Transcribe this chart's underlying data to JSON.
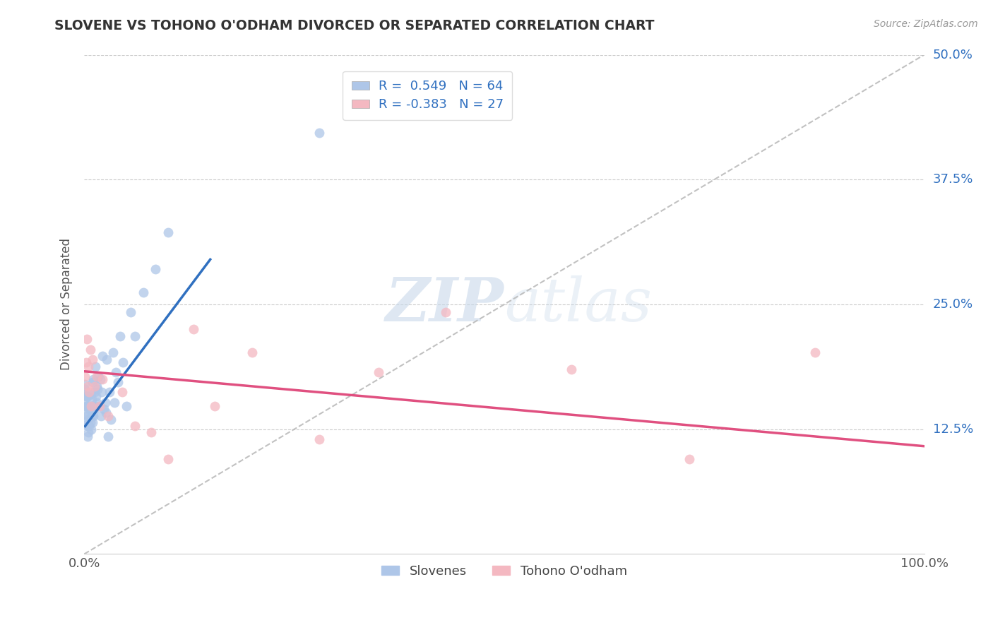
{
  "title": "SLOVENE VS TOHONO O'ODHAM DIVORCED OR SEPARATED CORRELATION CHART",
  "source_text": "Source: ZipAtlas.com",
  "ylabel": "Divorced or Separated",
  "xmin": 0.0,
  "xmax": 1.0,
  "ymin": 0.0,
  "ymax": 0.5,
  "ytick_positions": [
    0.125,
    0.25,
    0.375,
    0.5
  ],
  "ytick_labels": [
    "12.5%",
    "25.0%",
    "37.5%",
    "50.0%"
  ],
  "grid_color": "#cccccc",
  "background_color": "#ffffff",
  "slovene_color": "#aec6e8",
  "tohono_color": "#f4b8c1",
  "slovene_line_color": "#3070c0",
  "tohono_line_color": "#e05080",
  "diagonal_color": "#bbbbbb",
  "R_slovene": 0.549,
  "N_slovene": 64,
  "R_tohono": -0.383,
  "N_tohono": 27,
  "legend_label_slovene": "Slovenes",
  "legend_label_tohono": "Tohono O'odham",
  "watermark_zip": "ZIP",
  "watermark_atlas": "atlas",
  "slovene_scatter_x": [
    0.001,
    0.001,
    0.001,
    0.001,
    0.002,
    0.002,
    0.002,
    0.003,
    0.003,
    0.003,
    0.003,
    0.004,
    0.004,
    0.004,
    0.005,
    0.005,
    0.005,
    0.006,
    0.006,
    0.007,
    0.007,
    0.008,
    0.008,
    0.009,
    0.009,
    0.01,
    0.01,
    0.01,
    0.011,
    0.011,
    0.012,
    0.012,
    0.013,
    0.013,
    0.014,
    0.015,
    0.015,
    0.016,
    0.017,
    0.018,
    0.019,
    0.02,
    0.021,
    0.022,
    0.023,
    0.025,
    0.026,
    0.027,
    0.028,
    0.03,
    0.032,
    0.034,
    0.036,
    0.038,
    0.04,
    0.043,
    0.046,
    0.05,
    0.055,
    0.06,
    0.07,
    0.085,
    0.1,
    0.28
  ],
  "slovene_scatter_y": [
    0.155,
    0.16,
    0.165,
    0.17,
    0.14,
    0.148,
    0.158,
    0.13,
    0.138,
    0.148,
    0.158,
    0.118,
    0.128,
    0.158,
    0.122,
    0.135,
    0.148,
    0.128,
    0.145,
    0.132,
    0.148,
    0.125,
    0.16,
    0.138,
    0.155,
    0.132,
    0.148,
    0.172,
    0.138,
    0.175,
    0.145,
    0.162,
    0.148,
    0.188,
    0.158,
    0.152,
    0.168,
    0.165,
    0.178,
    0.148,
    0.175,
    0.138,
    0.162,
    0.198,
    0.145,
    0.152,
    0.142,
    0.195,
    0.118,
    0.162,
    0.135,
    0.202,
    0.152,
    0.182,
    0.172,
    0.218,
    0.192,
    0.148,
    0.242,
    0.218,
    0.262,
    0.285,
    0.322,
    0.422
  ],
  "tohono_scatter_x": [
    0.001,
    0.002,
    0.003,
    0.004,
    0.005,
    0.006,
    0.007,
    0.008,
    0.01,
    0.012,
    0.015,
    0.018,
    0.022,
    0.028,
    0.045,
    0.06,
    0.08,
    0.1,
    0.13,
    0.155,
    0.2,
    0.28,
    0.35,
    0.43,
    0.58,
    0.72,
    0.87
  ],
  "tohono_scatter_y": [
    0.178,
    0.192,
    0.215,
    0.168,
    0.188,
    0.162,
    0.205,
    0.148,
    0.195,
    0.168,
    0.178,
    0.148,
    0.175,
    0.138,
    0.162,
    0.128,
    0.122,
    0.095,
    0.225,
    0.148,
    0.202,
    0.115,
    0.182,
    0.242,
    0.185,
    0.095,
    0.202
  ],
  "slovene_line_x0": 0.001,
  "slovene_line_x1": 0.15,
  "slovene_line_y0": 0.128,
  "slovene_line_y1": 0.295,
  "tohono_line_x0": 0.0,
  "tohono_line_x1": 1.0,
  "tohono_line_y0": 0.183,
  "tohono_line_y1": 0.108
}
